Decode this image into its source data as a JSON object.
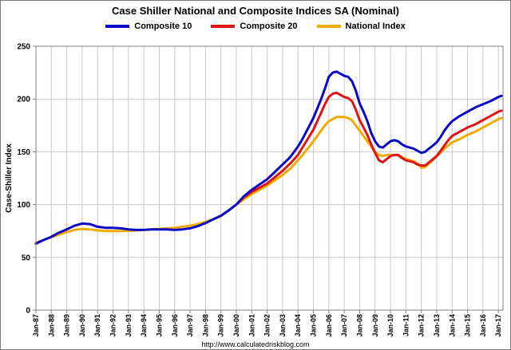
{
  "title": "Case Shiller National and Composite Indices SA (Nominal)",
  "footer_url": "http://www.calculatedriskblog.com",
  "chart_data": {
    "type": "line",
    "title": "Case Shiller National and Composite Indices SA (Nominal)",
    "xlabel": "",
    "ylabel": "Case-Shiller Index",
    "ylim": [
      0,
      250
    ],
    "xlim": [
      1987,
      2017.3
    ],
    "y_ticks": [
      0,
      50,
      100,
      150,
      200,
      250
    ],
    "x_tick_positions": [
      1987,
      1988,
      1989,
      1990,
      1991,
      1992,
      1993,
      1994,
      1995,
      1996,
      1997,
      1998,
      1999,
      2000,
      2001,
      2002,
      2003,
      2004,
      2005,
      2006,
      2007,
      2008,
      2009,
      2010,
      2011,
      2012,
      2013,
      2014,
      2015,
      2016,
      2017
    ],
    "x_tick_labels": [
      "Jan-87",
      "Jan-88",
      "Jan-89",
      "Jan-90",
      "Jan-91",
      "Jan-92",
      "Jan-93",
      "Jan-94",
      "Jan-95",
      "Jan-96",
      "Jan-97",
      "Jan-98",
      "Jan-99",
      "Jan-00",
      "Jan-01",
      "Jan-02",
      "Jan-03",
      "Jan-04",
      "Jan-05",
      "Jan-06",
      "Jan-07",
      "Jan-08",
      "Jan-09",
      "Jan-10",
      "Jan-11",
      "Jan-12",
      "Jan-13",
      "Jan-14",
      "Jan-15",
      "Jan-16",
      "Jan-17"
    ],
    "grid": true,
    "legend_position": "top",
    "axis_color": "#808080",
    "grid_color": "#c9c9c9",
    "series": [
      {
        "name": "National Index",
        "color": "#f0ab00",
        "points": [
          [
            1987,
            64
          ],
          [
            1987.5,
            66.5
          ],
          [
            1988,
            69
          ],
          [
            1988.5,
            71.5
          ],
          [
            1989,
            74
          ],
          [
            1989.5,
            76
          ],
          [
            1990,
            77
          ],
          [
            1990.5,
            76.5
          ],
          [
            1991,
            75.5
          ],
          [
            1991.5,
            75
          ],
          [
            1992,
            75
          ],
          [
            1992.5,
            75
          ],
          [
            1993,
            75
          ],
          [
            1993.5,
            75.5
          ],
          [
            1994,
            76
          ],
          [
            1994.5,
            76.5
          ],
          [
            1995,
            77
          ],
          [
            1995.5,
            77.5
          ],
          [
            1996,
            78
          ],
          [
            1996.5,
            79
          ],
          [
            1997,
            80
          ],
          [
            1997.5,
            81.5
          ],
          [
            1998,
            83.5
          ],
          [
            1998.5,
            86
          ],
          [
            1999,
            89
          ],
          [
            1999.5,
            94
          ],
          [
            2000,
            100
          ],
          [
            2000.5,
            105
          ],
          [
            2001,
            110
          ],
          [
            2001.5,
            114
          ],
          [
            2002,
            118
          ],
          [
            2002.5,
            123
          ],
          [
            2003,
            128
          ],
          [
            2003.5,
            134
          ],
          [
            2004,
            142
          ],
          [
            2004.25,
            146
          ],
          [
            2004.5,
            151
          ],
          [
            2004.75,
            155
          ],
          [
            2005,
            160
          ],
          [
            2005.25,
            165
          ],
          [
            2005.5,
            170
          ],
          [
            2005.75,
            175
          ],
          [
            2006,
            179
          ],
          [
            2006.25,
            181
          ],
          [
            2006.5,
            183
          ],
          [
            2006.75,
            183
          ],
          [
            2007,
            183
          ],
          [
            2007.25,
            182
          ],
          [
            2007.5,
            180
          ],
          [
            2007.75,
            175
          ],
          [
            2008,
            170
          ],
          [
            2008.25,
            165
          ],
          [
            2008.5,
            160
          ],
          [
            2008.75,
            155
          ],
          [
            2009,
            150
          ],
          [
            2009.25,
            147
          ],
          [
            2009.5,
            146
          ],
          [
            2009.75,
            147
          ],
          [
            2010,
            147
          ],
          [
            2010.25,
            147
          ],
          [
            2010.5,
            147
          ],
          [
            2010.75,
            145
          ],
          [
            2011,
            143
          ],
          [
            2011.25,
            142
          ],
          [
            2011.5,
            141
          ],
          [
            2011.75,
            139
          ],
          [
            2012,
            135
          ],
          [
            2012.25,
            135.5
          ],
          [
            2012.5,
            139
          ],
          [
            2012.75,
            142
          ],
          [
            2013,
            146
          ],
          [
            2013.25,
            149
          ],
          [
            2013.5,
            153
          ],
          [
            2013.75,
            156
          ],
          [
            2014,
            159
          ],
          [
            2014.5,
            162
          ],
          [
            2015,
            166
          ],
          [
            2015.5,
            169
          ],
          [
            2016,
            173
          ],
          [
            2016.5,
            177
          ],
          [
            2017,
            181
          ],
          [
            2017.2,
            182
          ]
        ]
      },
      {
        "name": "Composite 20",
        "color": "#e01414",
        "points": [
          [
            2000,
            100
          ],
          [
            2000.5,
            107
          ],
          [
            2001,
            112
          ],
          [
            2001.5,
            116
          ],
          [
            2002,
            120
          ],
          [
            2002.5,
            126
          ],
          [
            2003,
            132
          ],
          [
            2003.5,
            139
          ],
          [
            2004,
            147
          ],
          [
            2004.25,
            153
          ],
          [
            2004.5,
            159
          ],
          [
            2004.75,
            165
          ],
          [
            2005,
            171
          ],
          [
            2005.25,
            179
          ],
          [
            2005.5,
            187
          ],
          [
            2005.75,
            195
          ],
          [
            2006,
            202
          ],
          [
            2006.25,
            205
          ],
          [
            2006.5,
            206
          ],
          [
            2006.75,
            204
          ],
          [
            2007,
            202
          ],
          [
            2007.25,
            201
          ],
          [
            2007.5,
            198
          ],
          [
            2007.75,
            190
          ],
          [
            2008,
            180
          ],
          [
            2008.25,
            173
          ],
          [
            2008.5,
            166
          ],
          [
            2008.75,
            157
          ],
          [
            2009,
            149
          ],
          [
            2009.25,
            142
          ],
          [
            2009.5,
            140
          ],
          [
            2009.75,
            143
          ],
          [
            2010,
            146
          ],
          [
            2010.25,
            147
          ],
          [
            2010.5,
            147
          ],
          [
            2010.75,
            144
          ],
          [
            2011,
            142
          ],
          [
            2011.25,
            141
          ],
          [
            2011.5,
            140
          ],
          [
            2011.75,
            138
          ],
          [
            2012,
            137
          ],
          [
            2012.25,
            137
          ],
          [
            2012.5,
            140
          ],
          [
            2012.75,
            143
          ],
          [
            2013,
            146
          ],
          [
            2013.25,
            151
          ],
          [
            2013.5,
            156
          ],
          [
            2013.75,
            161
          ],
          [
            2014,
            165
          ],
          [
            2014.5,
            169
          ],
          [
            2015,
            173
          ],
          [
            2015.5,
            176
          ],
          [
            2016,
            180
          ],
          [
            2016.5,
            184
          ],
          [
            2017,
            188
          ],
          [
            2017.2,
            189
          ]
        ]
      },
      {
        "name": "Composite 10",
        "color": "#0909c6",
        "points": [
          [
            1987,
            63
          ],
          [
            1987.5,
            66.5
          ],
          [
            1988,
            69.5
          ],
          [
            1988.5,
            73.5
          ],
          [
            1989,
            76.5
          ],
          [
            1989.5,
            80
          ],
          [
            1990,
            82
          ],
          [
            1990.5,
            81.5
          ],
          [
            1991,
            79
          ],
          [
            1991.5,
            78
          ],
          [
            1992,
            78
          ],
          [
            1992.5,
            77.5
          ],
          [
            1993,
            76.5
          ],
          [
            1993.5,
            76
          ],
          [
            1994,
            76
          ],
          [
            1994.5,
            76.5
          ],
          [
            1995,
            76.5
          ],
          [
            1995.5,
            76.5
          ],
          [
            1996,
            76
          ],
          [
            1996.5,
            76.5
          ],
          [
            1997,
            77.5
          ],
          [
            1997.5,
            79.5
          ],
          [
            1998,
            82.5
          ],
          [
            1998.5,
            86
          ],
          [
            1999,
            89.5
          ],
          [
            1999.5,
            94.5
          ],
          [
            2000,
            100
          ],
          [
            2000.5,
            108
          ],
          [
            2001,
            114
          ],
          [
            2001.5,
            119
          ],
          [
            2002,
            124
          ],
          [
            2002.5,
            131
          ],
          [
            2003,
            138
          ],
          [
            2003.5,
            145
          ],
          [
            2004,
            155
          ],
          [
            2004.25,
            161
          ],
          [
            2004.5,
            168
          ],
          [
            2004.75,
            175
          ],
          [
            2005,
            182
          ],
          [
            2005.25,
            191
          ],
          [
            2005.5,
            200
          ],
          [
            2005.75,
            210
          ],
          [
            2006,
            221
          ],
          [
            2006.25,
            225
          ],
          [
            2006.5,
            226
          ],
          [
            2006.75,
            224
          ],
          [
            2007,
            222
          ],
          [
            2007.25,
            221
          ],
          [
            2007.5,
            217
          ],
          [
            2007.75,
            208
          ],
          [
            2008,
            196
          ],
          [
            2008.25,
            188
          ],
          [
            2008.5,
            179
          ],
          [
            2008.75,
            168
          ],
          [
            2009,
            160
          ],
          [
            2009.25,
            155
          ],
          [
            2009.5,
            154
          ],
          [
            2009.75,
            157
          ],
          [
            2010,
            160
          ],
          [
            2010.25,
            161
          ],
          [
            2010.5,
            160
          ],
          [
            2010.75,
            157
          ],
          [
            2011,
            155
          ],
          [
            2011.25,
            154
          ],
          [
            2011.5,
            153
          ],
          [
            2011.75,
            151
          ],
          [
            2012,
            149
          ],
          [
            2012.25,
            150
          ],
          [
            2012.5,
            153
          ],
          [
            2012.75,
            156
          ],
          [
            2013,
            159
          ],
          [
            2013.25,
            164
          ],
          [
            2013.5,
            170
          ],
          [
            2013.75,
            175
          ],
          [
            2014,
            179
          ],
          [
            2014.5,
            184
          ],
          [
            2015,
            188
          ],
          [
            2015.5,
            192
          ],
          [
            2016,
            195
          ],
          [
            2016.5,
            198
          ],
          [
            2017,
            202
          ],
          [
            2017.2,
            203
          ]
        ]
      }
    ],
    "legend_order": [
      "Composite 10",
      "Composite 20",
      "National Index"
    ]
  }
}
